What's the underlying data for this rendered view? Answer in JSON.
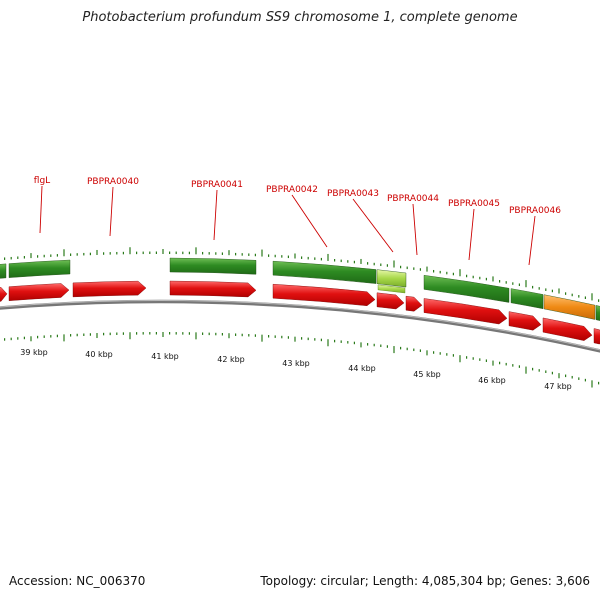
{
  "header": {
    "title": "Photobacterium profundum SS9 chromosome 1, complete genome"
  },
  "footer": {
    "accession": "Accession: NC_006370",
    "stats": "Topology: circular; Length: 4,085,304 bp; Genes: 3,606"
  },
  "colors": {
    "forward_gene": "#2e8b22",
    "reverse_gene": "#e01010",
    "light_gene": "#a8d84a",
    "orange_gene": "#ef8a14",
    "backbone": "#888888",
    "tick": "#2a7a1a",
    "label": "#cc0000"
  },
  "gene_labels": [
    "flgL",
    "PBPRA0040",
    "PBPRA0041",
    "PBPRA0042",
    "PBPRA0043",
    "PBPRA0044",
    "PBPRA0045",
    "PBPRA0046"
  ],
  "tick_labels": [
    "39 kbp",
    "40 kbp",
    "41 kbp",
    "42 kbp",
    "43 kbp",
    "44 kbp",
    "45 kbp",
    "46 kbp",
    "47 kbp"
  ]
}
